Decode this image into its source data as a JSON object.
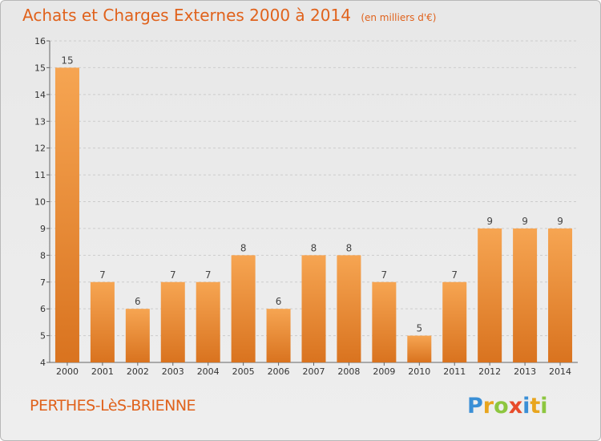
{
  "title": {
    "main": "Achats et Charges Externes 2000 à 2014",
    "unit": "(en milliers d'€)"
  },
  "place_name": "PERTHES-LèS-BRIENNE",
  "logo": {
    "text": "Proxiti",
    "letters": [
      {
        "char": "P",
        "color": "#3a8fd6"
      },
      {
        "char": "r",
        "color": "#e8a51e"
      },
      {
        "char": "o",
        "color": "#8dc63f"
      },
      {
        "char": "x",
        "color": "#e84b2a"
      },
      {
        "char": "i",
        "color": "#3a8fd6"
      },
      {
        "char": "t",
        "color": "#e8a51e"
      },
      {
        "char": "i",
        "color": "#8dc63f"
      }
    ]
  },
  "colors": {
    "title": "#e0621c",
    "bar_light": "#f6a552",
    "bar_dark": "#d9731f",
    "grid": "#cccccc"
  },
  "chart_data": {
    "type": "bar",
    "title": "Achats et Charges Externes 2000 à 2014",
    "subtitle": "(en milliers d'€)",
    "categories": [
      "2000",
      "2001",
      "2002",
      "2003",
      "2004",
      "2005",
      "2006",
      "2007",
      "2008",
      "2009",
      "2010",
      "2011",
      "2012",
      "2013",
      "2014"
    ],
    "values": [
      15,
      7,
      6,
      7,
      7,
      8,
      6,
      8,
      8,
      7,
      5,
      7,
      9,
      9,
      9
    ],
    "data_labels": [
      "15",
      "7",
      "6",
      "7",
      "7",
      "8",
      "6",
      "8",
      "8",
      "7",
      "5",
      "7",
      "9",
      "9",
      "9"
    ],
    "ylim": [
      4,
      16
    ],
    "yticks": [
      4,
      5,
      6,
      7,
      8,
      9,
      10,
      11,
      12,
      13,
      14,
      15,
      16
    ],
    "grid": true
  }
}
